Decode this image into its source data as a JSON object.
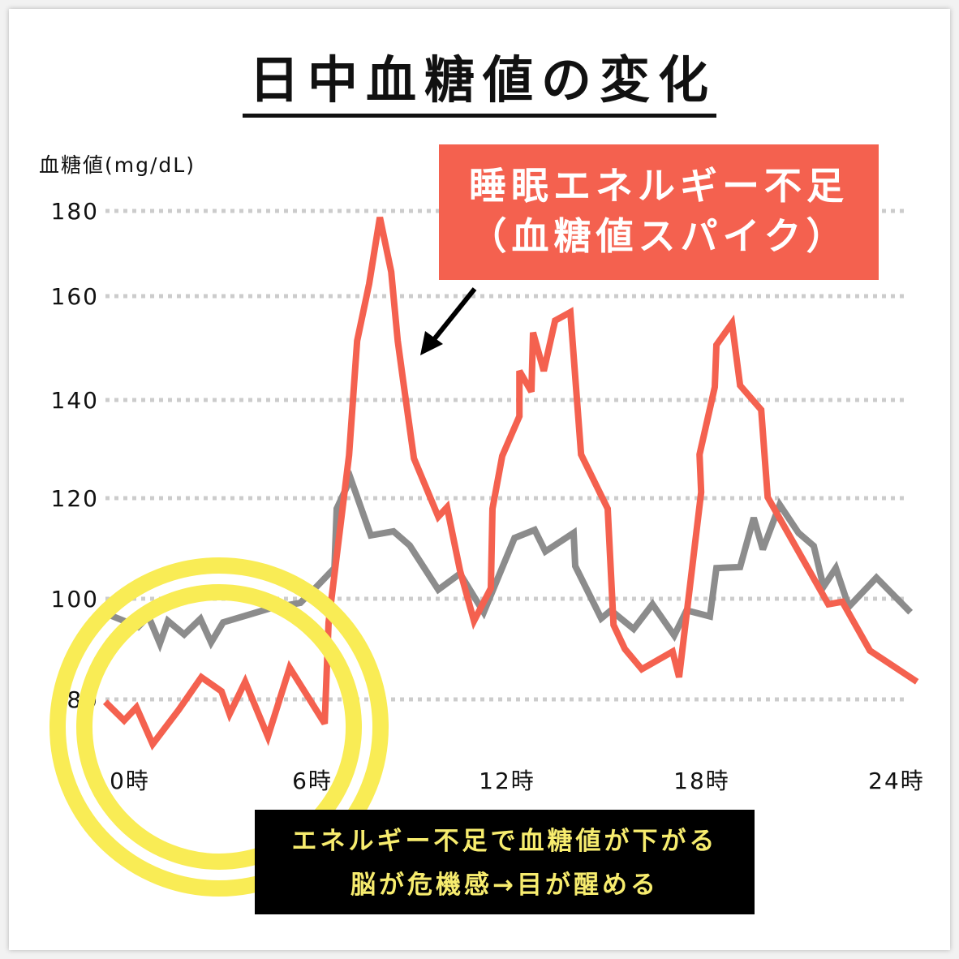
{
  "chart_data": {
    "type": "line",
    "title": "日中血糖値の変化",
    "ylabel": "血糖値(mg/dL)",
    "xlabel": "",
    "yticks": [
      180,
      160,
      140,
      120,
      100,
      80
    ],
    "xticks": [
      {
        "hour": 0,
        "label": "0時"
      },
      {
        "hour": 6,
        "label": "6時"
      },
      {
        "hour": 12,
        "label": "12時"
      },
      {
        "hour": 18,
        "label": "18時"
      },
      {
        "hour": 24,
        "label": "24時"
      }
    ],
    "ylim": [
      80,
      180
    ],
    "grid": "horizontal dotted",
    "series": [
      {
        "color": "#8c8c8c",
        "points": [
          [
            -0.3,
            96.9
          ],
          [
            0.2,
            95.6
          ],
          [
            0.63,
            94.4
          ],
          [
            0.95,
            96.5
          ],
          [
            1.3,
            91.1
          ],
          [
            1.55,
            95.6
          ],
          [
            2.05,
            92.9
          ],
          [
            2.55,
            96
          ],
          [
            2.88,
            91.3
          ],
          [
            3.25,
            95.3
          ],
          [
            4.7,
            98.1
          ],
          [
            5.63,
            99.2
          ],
          [
            6.13,
            102.4
          ],
          [
            6.68,
            106.1
          ],
          [
            6.75,
            117.9
          ],
          [
            7.18,
            124
          ],
          [
            7.8,
            112.6
          ],
          [
            8.5,
            113.4
          ],
          [
            9,
            110.6
          ],
          [
            9.88,
            101.8
          ],
          [
            10.55,
            105
          ],
          [
            11.28,
            97.3
          ],
          [
            12.23,
            112.1
          ],
          [
            12.85,
            113.7
          ],
          [
            13.18,
            109.4
          ],
          [
            14.05,
            113.1
          ],
          [
            14.1,
            106.5
          ],
          [
            14.9,
            96.1
          ],
          [
            15.2,
            97.7
          ],
          [
            15.9,
            94
          ],
          [
            16.48,
            98.9
          ],
          [
            17.15,
            92.7
          ],
          [
            17.53,
            97.7
          ],
          [
            18.25,
            96.5
          ],
          [
            18.45,
            106.1
          ],
          [
            19.18,
            106.3
          ],
          [
            19.6,
            116.1
          ],
          [
            19.88,
            109.8
          ],
          [
            20.4,
            118.7
          ],
          [
            20.98,
            113.1
          ],
          [
            21.45,
            110.5
          ],
          [
            21.75,
            102.4
          ],
          [
            22.13,
            106.1
          ],
          [
            22.53,
            98.4
          ],
          [
            23.38,
            104.2
          ],
          [
            24.43,
            97.3
          ]
        ]
      },
      {
        "color": "#f4614f",
        "points": [
          [
            -0.38,
            79.5
          ],
          [
            0.2,
            75.8
          ],
          [
            0.58,
            78.4
          ],
          [
            1.08,
            71.1
          ],
          [
            1.88,
            77.9
          ],
          [
            2.58,
            84.4
          ],
          [
            3.2,
            81.6
          ],
          [
            3.45,
            77.1
          ],
          [
            3.93,
            83.5
          ],
          [
            4.63,
            72.6
          ],
          [
            5.3,
            86.3
          ],
          [
            6.38,
            75.2
          ],
          [
            6.5,
            95.3
          ],
          [
            7.13,
            128.7
          ],
          [
            7.38,
            151.4
          ],
          [
            7.75,
            162.9
          ],
          [
            8.08,
            178.5
          ],
          [
            8.43,
            165.7
          ],
          [
            8.63,
            151.4
          ],
          [
            8.8,
            143.6
          ],
          [
            9.13,
            128.1
          ],
          [
            9.88,
            116.3
          ],
          [
            10.15,
            118.2
          ],
          [
            10.55,
            105.6
          ],
          [
            10.98,
            95.6
          ],
          [
            11.5,
            102.1
          ],
          [
            11.55,
            117.9
          ],
          [
            11.85,
            128.6
          ],
          [
            12.38,
            136.7
          ],
          [
            12.38,
            145.6
          ],
          [
            12.75,
            141.6
          ],
          [
            12.8,
            153
          ],
          [
            13.13,
            145.6
          ],
          [
            13.48,
            155.3
          ],
          [
            13.95,
            156.9
          ],
          [
            14.28,
            128.9
          ],
          [
            15.1,
            117.9
          ],
          [
            15.28,
            94.8
          ],
          [
            15.63,
            90
          ],
          [
            16.15,
            86
          ],
          [
            17.1,
            89.5
          ],
          [
            17.3,
            84.4
          ],
          [
            17.98,
            121.2
          ],
          [
            17.93,
            128.9
          ],
          [
            18.4,
            142.5
          ],
          [
            18.45,
            150.6
          ],
          [
            18.93,
            154.8
          ],
          [
            19.18,
            142.8
          ],
          [
            19.83,
            138
          ],
          [
            20.03,
            120.2
          ],
          [
            21.9,
            98.9
          ],
          [
            22.33,
            99.4
          ],
          [
            23.18,
            89.7
          ],
          [
            24.63,
            83.5
          ]
        ]
      }
    ],
    "annotations": {
      "spike_line1": "睡眠エネルギー不足",
      "spike_line2": "（血糖値スパイク）",
      "low_line1": "エネルギー不足で血糖値が下がる",
      "low_line2": "脳が危機感→目が醒める"
    },
    "colors": {
      "spike_box": "#f4614f",
      "low_box": "#000000",
      "low_text": "#f7ec6e",
      "highlight_circle": "#f9ec55",
      "grid": "#cccccc"
    }
  }
}
